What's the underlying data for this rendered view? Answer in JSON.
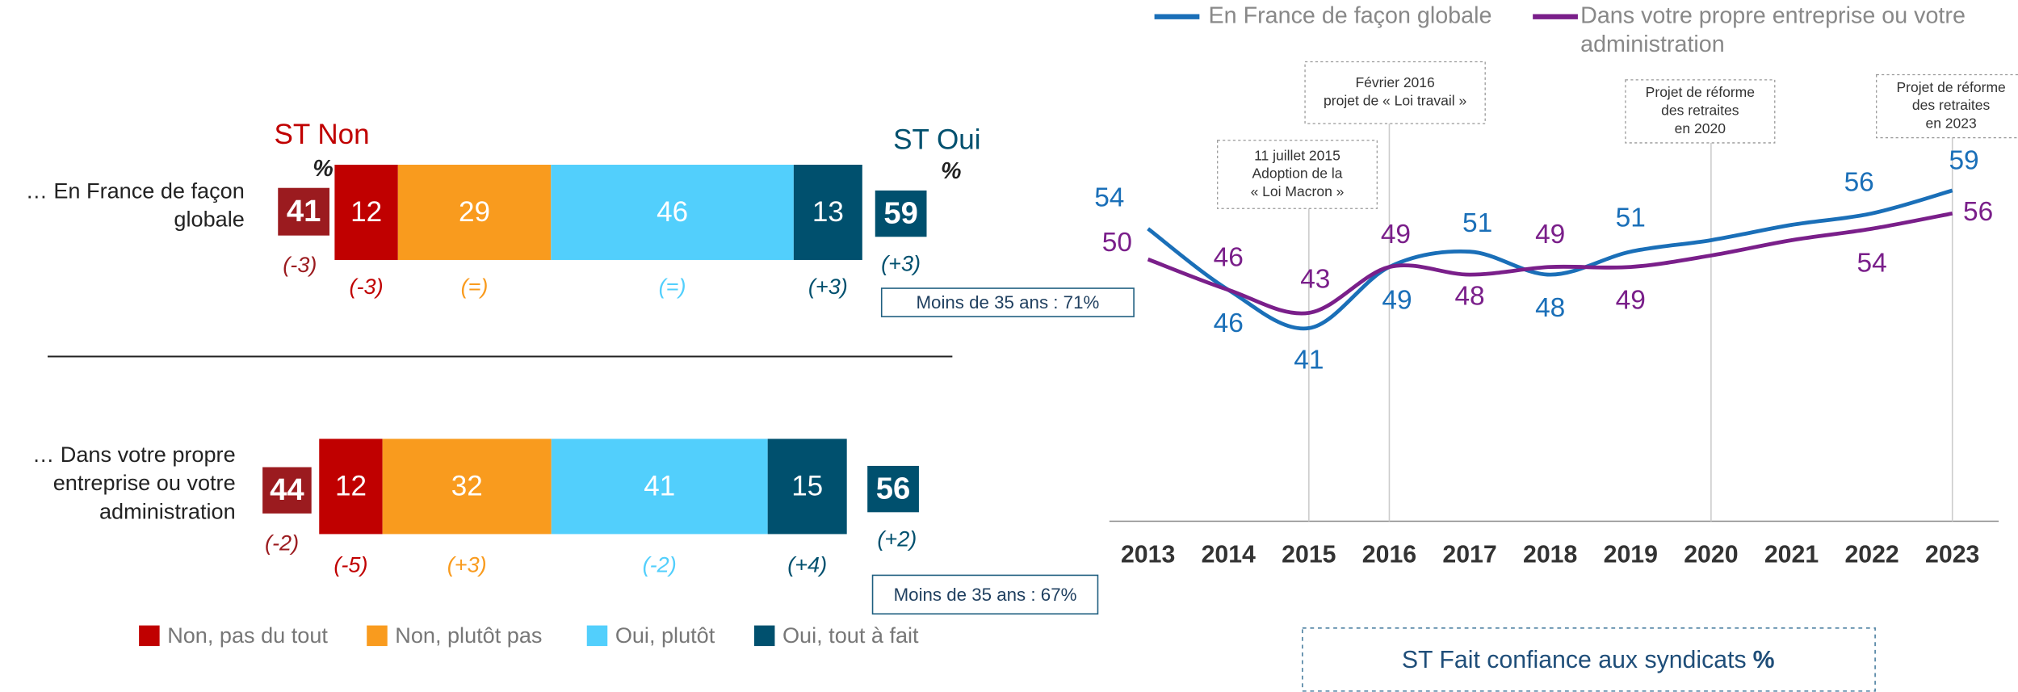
{
  "chart_data": [
    {
      "type": "stacked_bar_h",
      "categories": [
        "… En France de façon globale",
        "… Dans votre propre entreprise ou votre administration"
      ],
      "series": [
        {
          "name": "Non, pas du tout",
          "color": "#c00000",
          "values": [
            12,
            12
          ],
          "changes": [
            "(-3)",
            "(-5)"
          ]
        },
        {
          "name": "Non, plutôt pas",
          "color": "#f99b1e",
          "values": [
            29,
            32
          ],
          "changes": [
            "(=)",
            "(+3)"
          ]
        },
        {
          "name": "Oui, plutôt",
          "color": "#52cffc",
          "values": [
            46,
            41
          ],
          "changes": [
            "(=)",
            "(-2)"
          ]
        },
        {
          "name": "Oui, tout à fait",
          "color": "#00506e",
          "values": [
            13,
            15
          ],
          "changes": [
            "(+3)",
            "(+4)"
          ]
        }
      ],
      "st_non": {
        "label": "ST Non",
        "unit": "%",
        "color": "#9b1b1f",
        "values": [
          41,
          44
        ],
        "changes": [
          "(-3)",
          "(-2)"
        ]
      },
      "st_oui": {
        "label": "ST Oui",
        "unit": "%",
        "color": "#00506e",
        "values": [
          59,
          56
        ],
        "changes": [
          "(+3)",
          "(+2)"
        ]
      },
      "notes": [
        "Moins de 35 ans : 71%",
        "Moins de 35 ans : 67%"
      ]
    },
    {
      "type": "line",
      "x": [
        2013,
        2014,
        2015,
        2016,
        2017,
        2018,
        2019,
        2020,
        2021,
        2022,
        2023
      ],
      "series": [
        {
          "name": "En France de façon globale",
          "color": "#1a6fb8",
          "values": [
            54,
            46,
            41,
            49,
            51,
            48,
            51,
            52.5,
            54.5,
            56,
            59
          ],
          "value_labels": [
            "54",
            "46",
            "41",
            "49",
            "51",
            "48",
            "51",
            null,
            null,
            "56",
            "59"
          ]
        },
        {
          "name": "Dans votre propre entreprise ou votre administration",
          "color": "#7a1f8a",
          "values": [
            50,
            46,
            43,
            49,
            48,
            49,
            49,
            50.5,
            52.5,
            54,
            56
          ],
          "value_labels": [
            "50",
            "46",
            "43",
            "49",
            "48",
            "49",
            "49",
            null,
            null,
            "54",
            "56"
          ]
        }
      ],
      "annotations": [
        {
          "x": 2015,
          "lines": [
            "11 juillet 2015",
            "Adoption de la",
            "« Loi Macron »"
          ]
        },
        {
          "x": 2016,
          "lines": [
            "Février 2016",
            "projet de « Loi travail »"
          ]
        },
        {
          "x": 2020,
          "lines": [
            "Projet de réforme",
            "des retraites",
            "en 2020"
          ]
        },
        {
          "x": 2023,
          "lines": [
            "Projet de réforme",
            "des retraites",
            "en 2023"
          ]
        }
      ],
      "footnote": "ST Fait confiance aux syndicats",
      "footnote_unit": "%"
    }
  ]
}
